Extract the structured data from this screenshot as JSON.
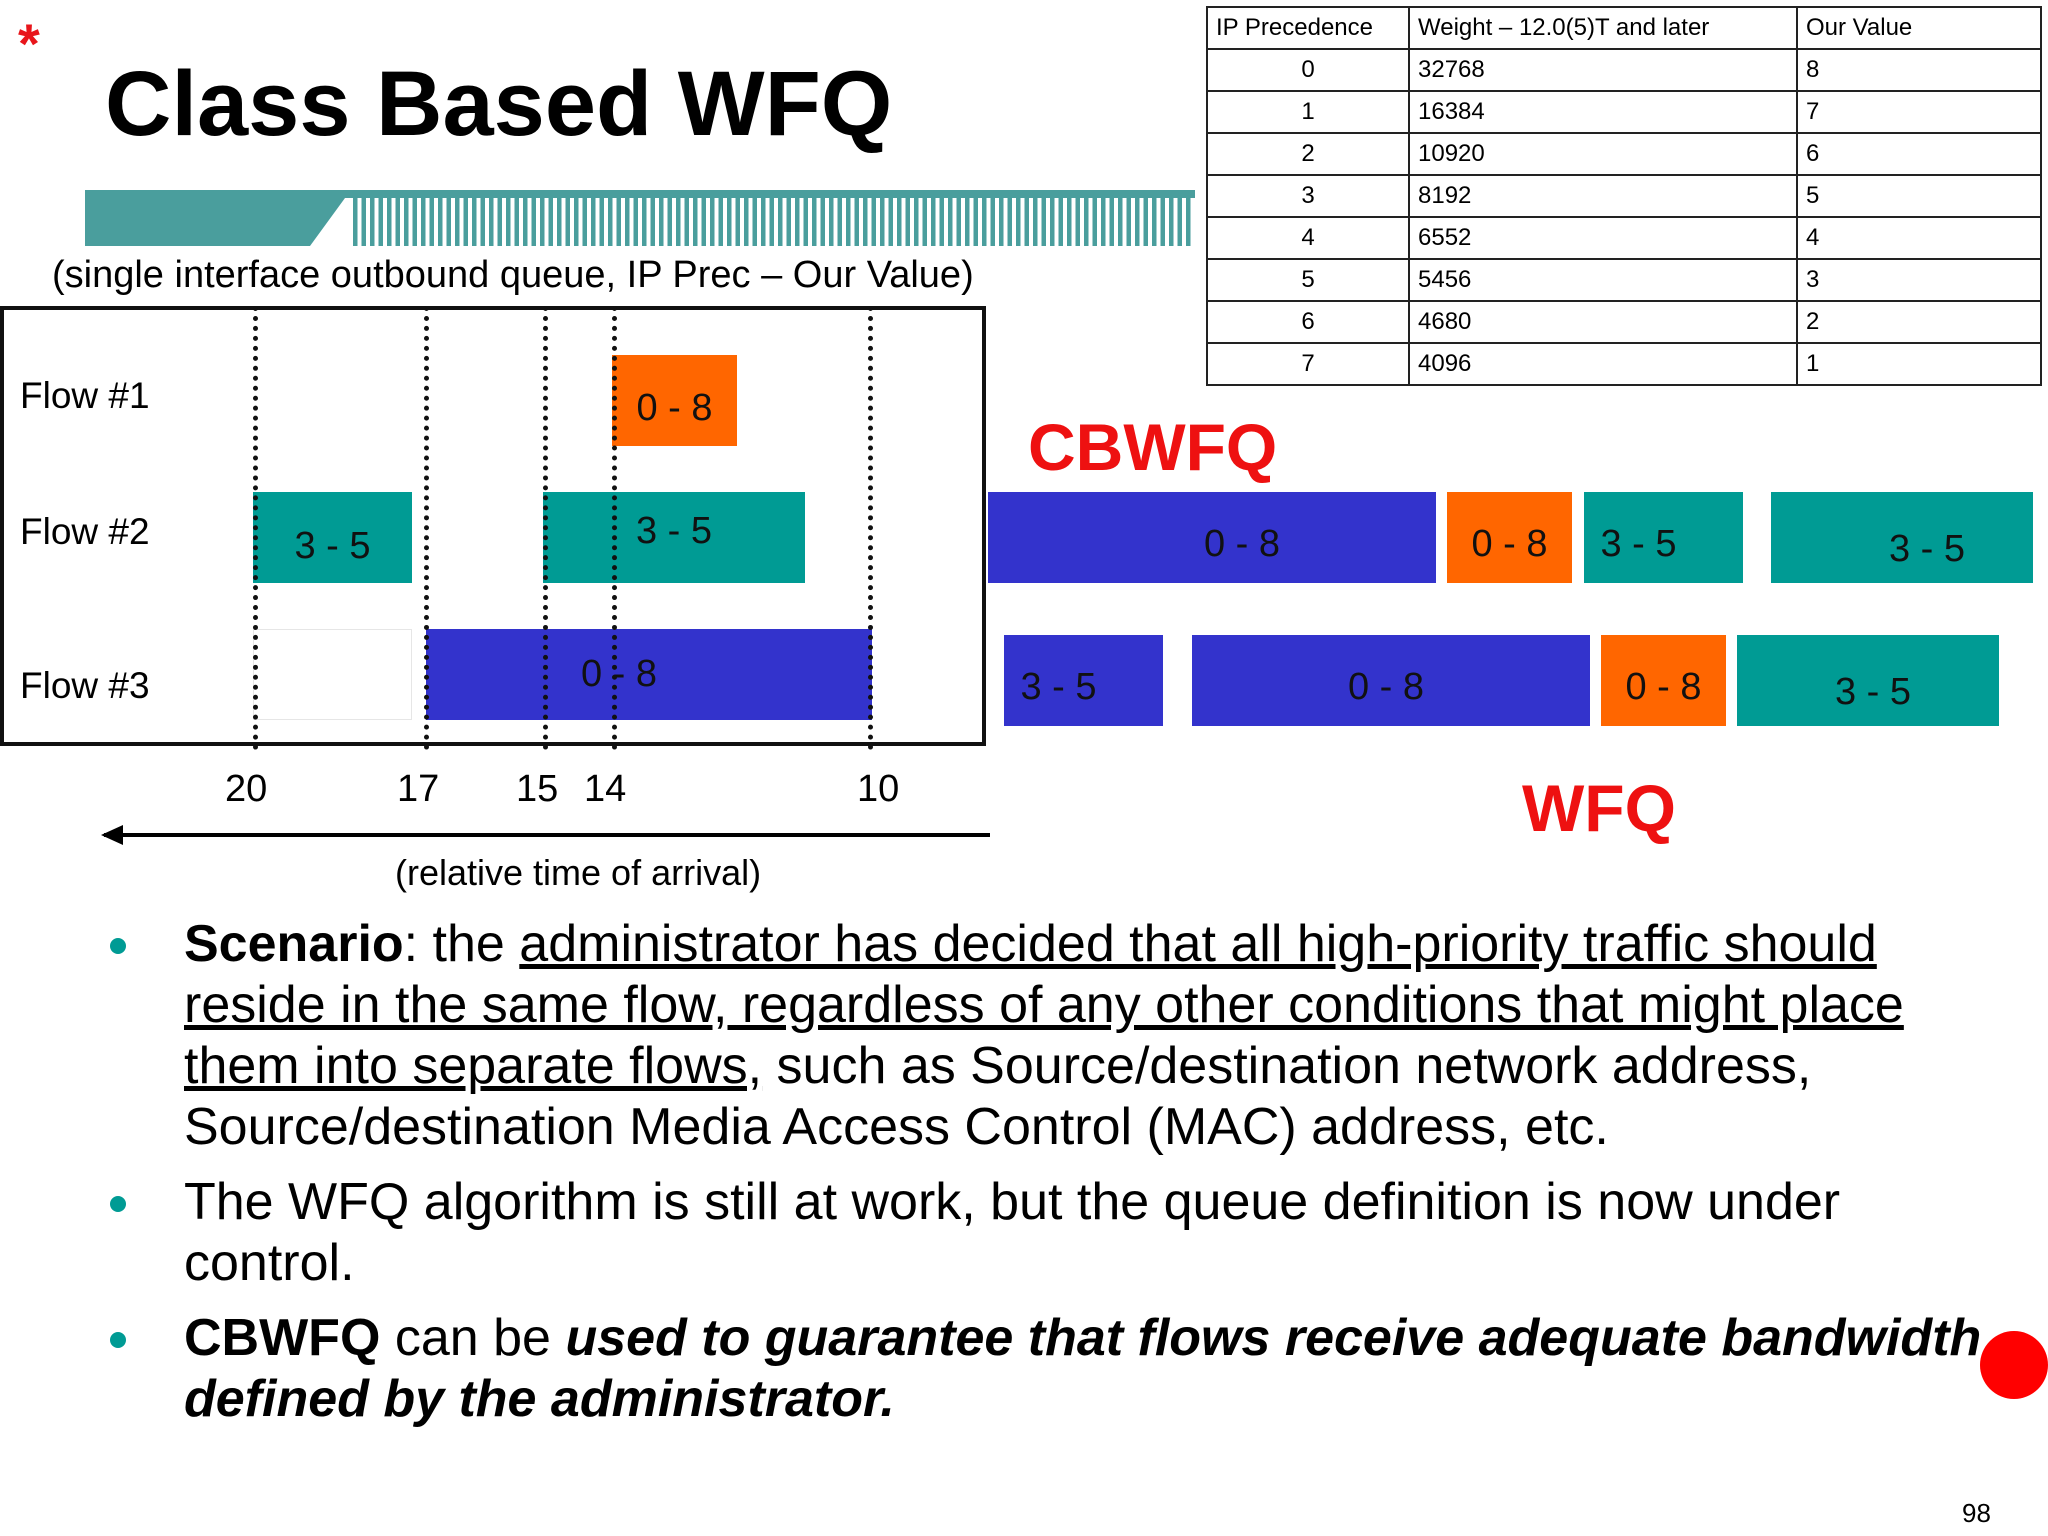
{
  "slide": {
    "star": "*",
    "title": "Class Based WFQ",
    "subtitle": "(single interface outbound queue, IP Prec – Our Value)",
    "page_number": "98",
    "colors": {
      "teal": "#009b94",
      "blue": "#3333cc",
      "orange": "#ff6600",
      "red": "#ee1111"
    }
  },
  "weights_table": {
    "headers": [
      "IP Precedence",
      "Weight – 12.0(5)T and later",
      "Our Value"
    ],
    "rows": [
      [
        "0",
        "32768",
        "8"
      ],
      [
        "1",
        "16384",
        "7"
      ],
      [
        "2",
        "10920",
        "6"
      ],
      [
        "3",
        "8192",
        "5"
      ],
      [
        "4",
        "6552",
        "4"
      ],
      [
        "5",
        "5456",
        "3"
      ],
      [
        "6",
        "4680",
        "2"
      ],
      [
        "7",
        "4096",
        "1"
      ]
    ]
  },
  "flows": {
    "labels": [
      "Flow #1",
      "Flow #2",
      "Flow #3"
    ],
    "packets": {
      "flow1_a": "0 - 8",
      "flow2_a": "3 - 5",
      "flow2_b": "3 - 5",
      "flow3_a": "0 - 8"
    }
  },
  "time_axis": {
    "ticks": [
      "20",
      "17",
      "15",
      "14",
      "10"
    ],
    "label": "(relative time of arrival)"
  },
  "cbwfq": {
    "label": "CBWFQ",
    "packets": [
      "0 - 8",
      "0 - 8",
      "3 - 5",
      "3 - 5"
    ]
  },
  "wfq": {
    "label": "WFQ",
    "packets": [
      "3 - 5",
      "0 - 8",
      "0 - 8",
      "3 - 5"
    ]
  },
  "bullets": {
    "b1_bold": "Scenario",
    "b1_colon": ": the ",
    "b1_underlined": "administrator has decided that all high-priority traffic should reside in the same flow, regardless of any other conditions that might place them into separate flows,",
    "b1_rest": " such as Source/destination network address, Source/destination Media Access Control (MAC) address, etc.",
    "b2": "The WFQ algorithm is still at work, but the queue definition is now under control.",
    "b3_bold": "CBWFQ",
    "b3_mid": " can be ",
    "b3_bold_italic": "used to guarantee that flows receive adequate bandwidth defined by the administrator."
  }
}
